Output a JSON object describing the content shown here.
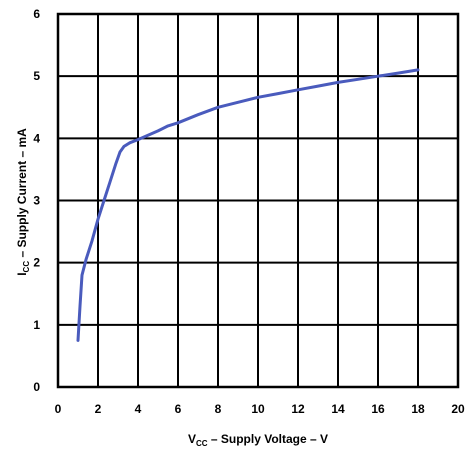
{
  "chart_data": {
    "type": "line",
    "title": "",
    "xlabel_main": "V",
    "xlabel_sub": "CC",
    "xlabel_rest": " – Supply Voltage – V",
    "ylabel_main": "I",
    "ylabel_sub": "CC",
    "ylabel_rest": " – Supply Current – mA",
    "xlim": [
      0,
      20
    ],
    "ylim": [
      0,
      6
    ],
    "xticks": [
      "0",
      "2",
      "4",
      "6",
      "8",
      "10",
      "12",
      "14",
      "16",
      "18",
      "20"
    ],
    "yticks": [
      "0",
      "1",
      "2",
      "3",
      "4",
      "5",
      "6"
    ],
    "grid": true,
    "line_color": "#4a5bbd",
    "series": [
      {
        "x": [
          1.0,
          1.1,
          1.2,
          1.4,
          1.7,
          2.0,
          2.3,
          2.6,
          2.9,
          3.1,
          3.3,
          3.6,
          4.0,
          4.5,
          5.0,
          5.5,
          6.0,
          7.0,
          8.0,
          9.0,
          10.0,
          11.0,
          12.0,
          13.0,
          14.0,
          15.0,
          16.0,
          17.0,
          18.0
        ],
        "y": [
          0.75,
          1.3,
          1.8,
          2.05,
          2.35,
          2.7,
          3.0,
          3.3,
          3.6,
          3.78,
          3.87,
          3.93,
          3.98,
          4.05,
          4.12,
          4.2,
          4.25,
          4.38,
          4.5,
          4.58,
          4.66,
          4.72,
          4.78,
          4.84,
          4.9,
          4.95,
          5.0,
          5.05,
          5.1
        ]
      }
    ]
  }
}
